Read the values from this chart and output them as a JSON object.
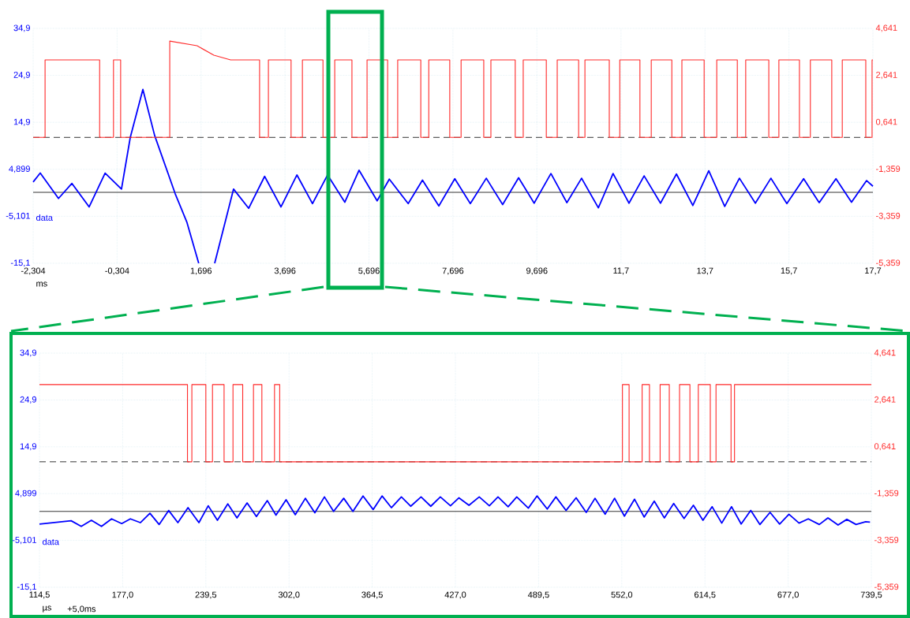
{
  "chart_data": [
    {
      "type": "line",
      "xlabel": "ms",
      "annotations": [
        "data"
      ],
      "grid": true,
      "xlim": [
        -2.304,
        17.7
      ],
      "ylim": [
        -15.1,
        34.9
      ],
      "y2lim": [
        -5.359,
        4.641
      ],
      "xticks": [
        {
          "value": -2.304,
          "label": "-2,304"
        },
        {
          "value": -0.304,
          "label": "-0,304"
        },
        {
          "value": 1.696,
          "label": "1,696"
        },
        {
          "value": 3.696,
          "label": "3,696"
        },
        {
          "value": 5.696,
          "label": "5,696"
        },
        {
          "value": 7.696,
          "label": "7,696"
        },
        {
          "value": 9.696,
          "label": "9,696"
        },
        {
          "value": 11.7,
          "label": "11,7"
        },
        {
          "value": 13.7,
          "label": "13,7"
        },
        {
          "value": 15.7,
          "label": "15,7"
        },
        {
          "value": 17.7,
          "label": "17,7"
        }
      ],
      "yticks": [
        {
          "value": 34.9,
          "label": "34,9"
        },
        {
          "value": 24.9,
          "label": "24,9"
        },
        {
          "value": 14.9,
          "label": "14,9"
        },
        {
          "value": 4.899,
          "label": "4,899"
        },
        {
          "value": -5.101,
          "label": "-5,101"
        },
        {
          "value": -15.1,
          "label": "-15,1"
        }
      ],
      "y2ticks": [
        {
          "value": 4.641,
          "label": "4,641"
        },
        {
          "value": 2.641,
          "label": "2,641"
        },
        {
          "value": 0.641,
          "label": "0,641"
        },
        {
          "value": -1.359,
          "label": "-1,359"
        },
        {
          "value": -3.359,
          "label": "-3,359"
        },
        {
          "value": -5.359,
          "label": "-5,359"
        }
      ],
      "ref_lines": [
        {
          "axis": "y2",
          "value": 0,
          "color": "#000000",
          "line_style": "dashed"
        },
        {
          "axis": "y",
          "value": 0,
          "color": "#000000",
          "line_style": "solid"
        }
      ],
      "series": [
        {
          "color": "#0000ff",
          "axis": "y",
          "x": [
            -2.304,
            -2.135,
            -1.7,
            -1.38,
            -0.97,
            -0.59,
            -0.2,
            0.01,
            0.31,
            0.59,
            1.08,
            1.36,
            1.64,
            1.83,
            2.02,
            2.47,
            2.83,
            3.21,
            3.6,
            3.98,
            4.35,
            4.71,
            5.12,
            5.46,
            5.89,
            6.18,
            6.63,
            6.97,
            7.36,
            7.74,
            8.11,
            8.49,
            8.88,
            9.26,
            9.63,
            10.03,
            10.41,
            10.76,
            11.16,
            11.51,
            11.89,
            12.25,
            12.64,
            13.02,
            13.41,
            13.79,
            14.17,
            14.52,
            14.9,
            15.27,
            15.65,
            16.05,
            16.42,
            16.82,
            17.19,
            17.55,
            17.7
          ],
          "values": [
            2.2,
            4.1,
            -1.3,
            1.9,
            -3.1,
            4.1,
            0.7,
            11.7,
            21.9,
            12.1,
            -0.3,
            -6.4,
            -15.1,
            null,
            -15.1,
            0.7,
            -3.4,
            3.4,
            -3.1,
            3.7,
            -2.4,
            3.7,
            -2.1,
            4.7,
            -1.8,
            2.8,
            -2.4,
            2.6,
            -2.9,
            2.9,
            -2.4,
            3.0,
            -2.6,
            3.1,
            -2.3,
            4.0,
            -2.2,
            3.0,
            -3.3,
            4.0,
            -2.3,
            3.5,
            -2.3,
            3.9,
            -2.8,
            4.6,
            -3.0,
            3.0,
            -2.3,
            3.0,
            -2.4,
            2.9,
            -2.2,
            2.9,
            -2.1,
            2.5,
            1.3
          ]
        },
        {
          "color": "#ff2a2a",
          "axis": "y2",
          "x": [
            -2.304,
            -2.02,
            -2.02,
            -0.72,
            -0.72,
            -0.39,
            -0.39,
            -0.22,
            -0.22,
            0.95,
            0.95,
            1.6,
            2.0,
            2.4,
            3.09,
            3.09,
            3.3,
            3.3,
            3.84,
            3.84,
            4.11,
            4.11,
            4.6,
            4.6,
            4.88,
            4.88,
            5.29,
            5.29,
            5.65,
            5.65,
            6.14,
            6.14,
            6.38,
            6.38,
            6.93,
            6.93,
            7.12,
            7.12,
            7.62,
            7.62,
            7.89,
            7.89,
            8.43,
            8.43,
            8.6,
            8.6,
            9.18,
            9.18,
            9.37,
            9.37,
            9.92,
            9.92,
            10.18,
            10.18,
            10.69,
            10.69,
            10.84,
            10.84,
            11.42,
            11.42,
            11.67,
            11.67,
            12.15,
            12.15,
            12.42,
            12.42,
            12.91,
            12.91,
            13.15,
            13.15,
            13.68,
            13.68,
            13.98,
            13.98,
            14.47,
            14.47,
            14.67,
            14.67,
            15.22,
            15.22,
            15.46,
            15.46,
            15.95,
            15.95,
            16.21,
            16.21,
            16.72,
            16.72,
            16.97,
            16.97,
            17.53,
            17.53,
            17.68,
            17.68,
            17.7
          ],
          "values": [
            0,
            0,
            3.3,
            3.3,
            0,
            0,
            3.3,
            3.3,
            0,
            0,
            4.1,
            3.9,
            3.5,
            3.3,
            3.3,
            0,
            0,
            3.3,
            3.3,
            0,
            0,
            3.3,
            3.3,
            0,
            0,
            3.3,
            3.3,
            0,
            0,
            3.3,
            3.3,
            0,
            0,
            3.3,
            3.3,
            0,
            0,
            3.3,
            3.3,
            0,
            0,
            3.3,
            3.3,
            0,
            0,
            3.3,
            3.3,
            0,
            0,
            3.3,
            3.3,
            0,
            0,
            3.3,
            3.3,
            0,
            0,
            3.3,
            3.3,
            0,
            0,
            3.3,
            3.3,
            0,
            0,
            3.3,
            3.3,
            0,
            0,
            3.3,
            3.3,
            0,
            0,
            3.3,
            3.3,
            0,
            0,
            3.3,
            3.3,
            0,
            0,
            3.3,
            3.3,
            0,
            0,
            3.3,
            3.3,
            0,
            0,
            3.3,
            3.3,
            0,
            0,
            3.3,
            3.3
          ]
        }
      ]
    },
    {
      "type": "line",
      "xlabel": "µs",
      "annotations": [
        "data",
        "+5,0ms"
      ],
      "grid": true,
      "xlim": [
        114.5,
        739.5
      ],
      "ylim": [
        -15.1,
        34.9
      ],
      "y2lim": [
        -5.359,
        4.641
      ],
      "xticks": [
        {
          "value": 114.5,
          "label": "114,5"
        },
        {
          "value": 177.0,
          "label": "177,0"
        },
        {
          "value": 239.5,
          "label": "239,5"
        },
        {
          "value": 302.0,
          "label": "302,0"
        },
        {
          "value": 364.5,
          "label": "364,5"
        },
        {
          "value": 427.0,
          "label": "427,0"
        },
        {
          "value": 489.5,
          "label": "489,5"
        },
        {
          "value": 552.0,
          "label": "552,0"
        },
        {
          "value": 614.5,
          "label": "614,5"
        },
        {
          "value": 677.0,
          "label": "677,0"
        },
        {
          "value": 739.5,
          "label": "739,5"
        }
      ],
      "yticks": [
        {
          "value": 34.9,
          "label": "34,9"
        },
        {
          "value": 24.9,
          "label": "24,9"
        },
        {
          "value": 14.9,
          "label": "14,9"
        },
        {
          "value": 4.899,
          "label": "4,899"
        },
        {
          "value": -5.101,
          "label": "-5,101"
        },
        {
          "value": -15.1,
          "label": "-15,1"
        }
      ],
      "y2ticks": [
        {
          "value": 4.641,
          "label": "4,641"
        },
        {
          "value": 2.641,
          "label": "2,641"
        },
        {
          "value": 0.641,
          "label": "0,641"
        },
        {
          "value": -1.359,
          "label": "-1,359"
        },
        {
          "value": -3.359,
          "label": "-3,359"
        },
        {
          "value": -5.359,
          "label": "-5,359"
        }
      ],
      "ref_lines": [
        {
          "axis": "y2",
          "value": 0,
          "color": "#000000",
          "line_style": "dashed"
        },
        {
          "axis": "y",
          "value": 1.1,
          "color": "#000000",
          "line_style": "solid"
        }
      ],
      "series": [
        {
          "color": "#0000ff",
          "axis": "y",
          "x": [
            114.5,
            138.3,
            145.9,
            153.5,
            161.1,
            168.7,
            176.3,
            182.8,
            190.3,
            197.5,
            204.4,
            211.6,
            218.5,
            226.1,
            234.3,
            241.3,
            248.2,
            256.0,
            262.9,
            270.5,
            277.5,
            285.7,
            292.2,
            299.8,
            306.7,
            314.3,
            321.4,
            328.6,
            335.5,
            343.1,
            350.0,
            357.6,
            365.2,
            371.9,
            378.9,
            386.4,
            393.4,
            401.2,
            408.5,
            415.7,
            423.3,
            429.6,
            437.2,
            444.9,
            452.5,
            459.0,
            466.6,
            473.1,
            481.8,
            488.3,
            496.0,
            502.5,
            510.1,
            517.7,
            525.3,
            531.9,
            539.5,
            546.6,
            554.0,
            561.6,
            568.8,
            576.4,
            584.0,
            591.0,
            598.8,
            605.8,
            613.0,
            619.9,
            627.1,
            634.5,
            641.7,
            648.9,
            655.8,
            663.4,
            670.6,
            677.6,
            685.2,
            692.1,
            700.4,
            706.9,
            714.5,
            721.1,
            728.0,
            735.2,
            738.5
          ],
          "values": [
            -1.6,
            -0.9,
            -2.1,
            -0.8,
            -2.1,
            -0.5,
            -1.5,
            -0.5,
            -1.3,
            0.7,
            -1.7,
            1.3,
            -1.3,
            1.9,
            -1.3,
            2.3,
            -0.8,
            2.7,
            -0.3,
            2.9,
            0.0,
            3.4,
            0.3,
            3.6,
            0.4,
            3.9,
            0.8,
            4.2,
            1.1,
            3.9,
            1.1,
            4.4,
            1.5,
            4.4,
            1.9,
            4.2,
            2.2,
            4.2,
            2.2,
            4.2,
            2.3,
            4.0,
            2.4,
            4.2,
            2.3,
            4.2,
            2.1,
            4.2,
            1.8,
            4.4,
            1.6,
            4.2,
            1.3,
            4.0,
            0.9,
            3.9,
            0.5,
            3.9,
            0.1,
            3.7,
            -0.1,
            3.3,
            -0.3,
            2.8,
            -0.4,
            2.4,
            -0.8,
            2.1,
            -1.4,
            2.1,
            -1.6,
            1.3,
            -1.7,
            0.9,
            -1.6,
            0.5,
            -1.4,
            -0.5,
            -1.7,
            -0.3,
            -1.8,
            -0.6,
            -1.7,
            -1.1,
            -1.2
          ]
        },
        {
          "color": "#ff2a2a",
          "axis": "y2",
          "x": [
            114.5,
            225.7,
            225.7,
            229.0,
            229.0,
            239.5,
            239.5,
            244.5,
            244.5,
            253.2,
            253.2,
            259.9,
            259.9,
            267.2,
            267.2,
            275.3,
            275.3,
            281.6,
            281.6,
            291.1,
            291.1,
            295.0,
            295.0,
            552.5,
            552.5,
            557.5,
            557.5,
            567.3,
            567.3,
            572.8,
            572.8,
            580.8,
            580.8,
            587.7,
            587.7,
            595.4,
            595.4,
            603.2,
            603.2,
            609.5,
            609.5,
            618.5,
            618.5,
            622.8,
            622.8,
            634.1,
            634.1,
            636.7,
            636.7,
            739.5
          ],
          "values": [
            3.3,
            3.3,
            0,
            0,
            3.3,
            3.3,
            0,
            0,
            3.3,
            3.3,
            0,
            0,
            3.3,
            3.3,
            0,
            0,
            3.3,
            3.3,
            0,
            0,
            3.3,
            3.3,
            0,
            0,
            3.3,
            3.3,
            0,
            0,
            3.3,
            3.3,
            0,
            0,
            3.3,
            3.3,
            0,
            0,
            3.3,
            3.3,
            0,
            0,
            3.3,
            3.3,
            0,
            0,
            3.3,
            3.3,
            0,
            0,
            3.3,
            3.3
          ]
        }
      ]
    }
  ]
}
